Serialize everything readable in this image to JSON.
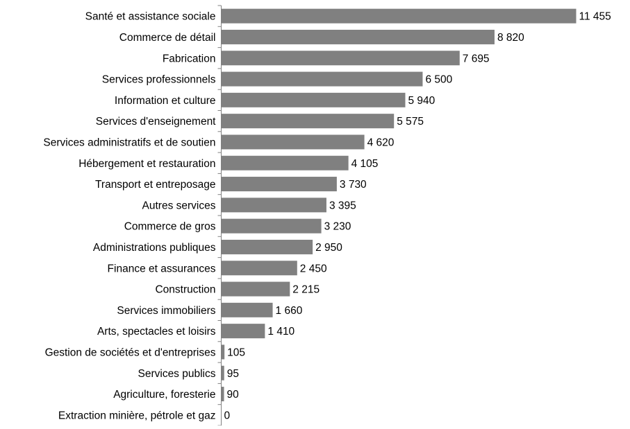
{
  "chart_data": {
    "type": "bar",
    "orientation": "horizontal",
    "title": "",
    "xlabel": "",
    "ylabel": "",
    "grid": false,
    "legend": "none",
    "xlim": [
      0,
      11455
    ],
    "bar_color": "#808080",
    "axis_color": "#808080",
    "categories": [
      "Santé et assistance sociale",
      "Commerce de détail",
      "Fabrication",
      "Services professionnels",
      "Information et culture",
      "Services d'enseignement",
      "Services administratifs et de soutien",
      "Hébergement et restauration",
      "Transport et entreposage",
      "Autres services",
      "Commerce de gros",
      "Administrations publiques",
      "Finance et assurances",
      "Construction",
      "Services immobiliers",
      "Arts, spectacles et loisirs",
      "Gestion de sociétés et d'entreprises",
      "Services publics",
      "Agriculture, foresterie",
      "Extraction minière, pétrole et gaz"
    ],
    "values": [
      11455,
      8820,
      7695,
      6500,
      5940,
      5575,
      4620,
      4105,
      3730,
      3395,
      3230,
      2950,
      2450,
      2215,
      1660,
      1410,
      105,
      95,
      90,
      0
    ],
    "value_labels": [
      "11 455",
      "8 820",
      "7 695",
      "6 500",
      "5 940",
      "5 575",
      "4 620",
      "4 105",
      "3 730",
      "3 395",
      "3 230",
      "2 950",
      "2 450",
      "2 215",
      "1 660",
      "1 410",
      "105",
      "95",
      "90",
      "0"
    ]
  }
}
